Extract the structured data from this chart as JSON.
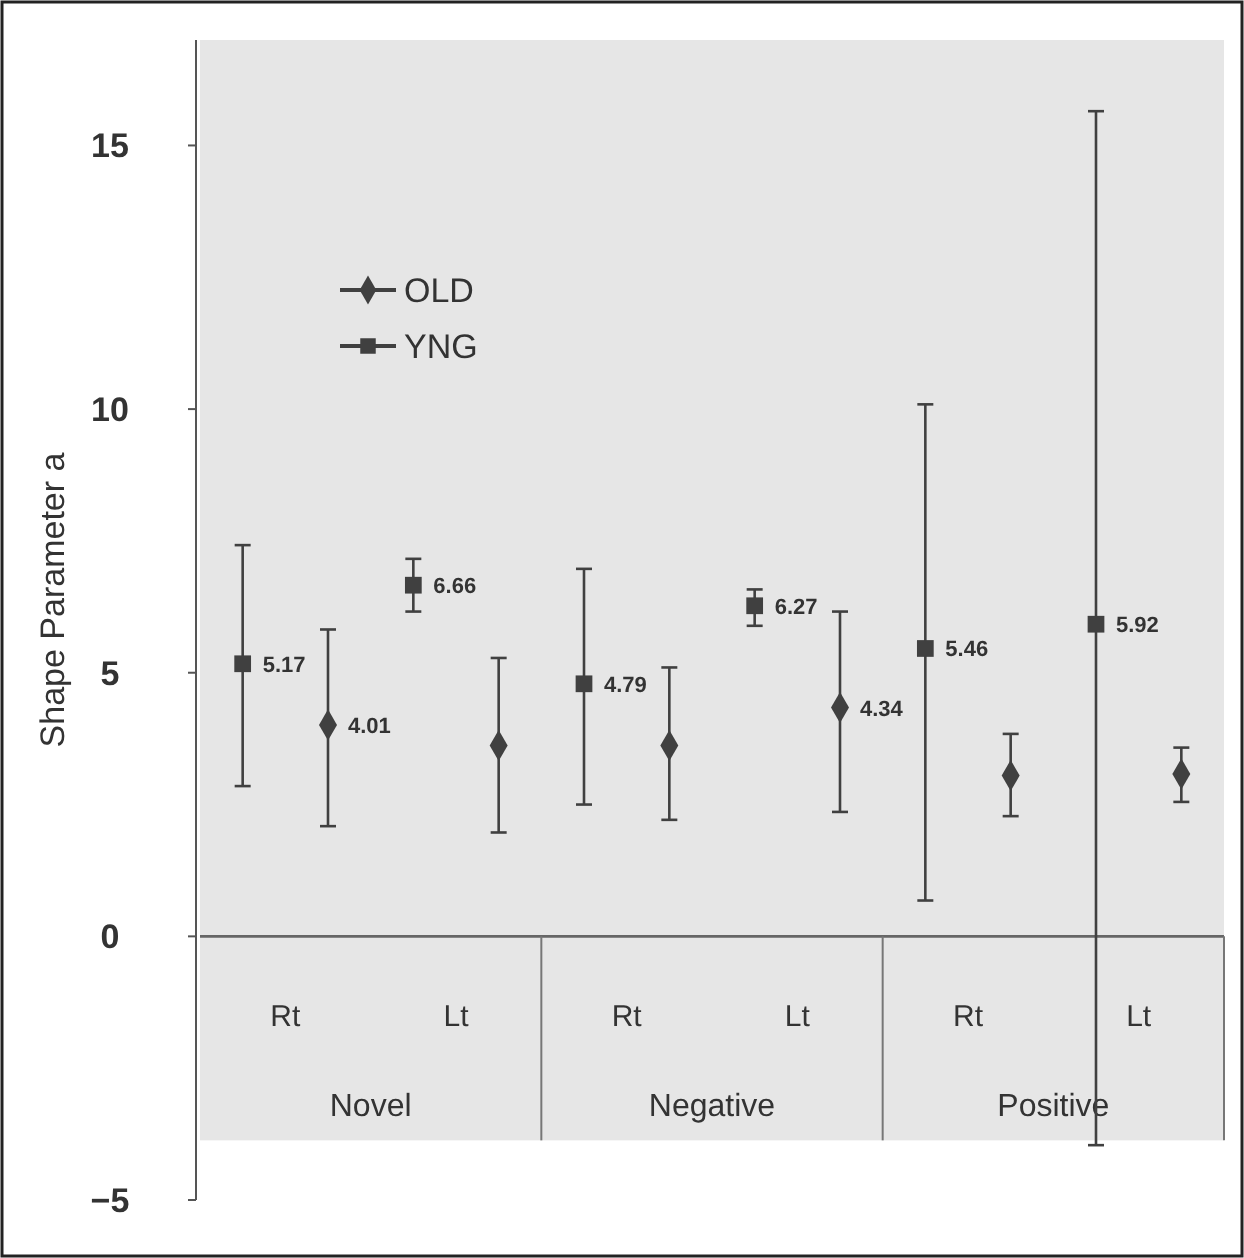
{
  "chart_data": {
    "type": "scatter",
    "ylabel": "Shape Parameter a",
    "categories": [
      "Rt",
      "Lt",
      "Rt",
      "Lt",
      "Rt",
      "Lt"
    ],
    "annotations": [
      "Novel",
      "Negative",
      "Positive"
    ],
    "ylim": [
      -5,
      17
    ],
    "yticks": [
      -5,
      0,
      5,
      10,
      15
    ],
    "legend": "top left",
    "series": [
      {
        "name": "OLD",
        "color": "#404040",
        "marker": "diamond",
        "values": [
          4.01,
          3.62,
          3.62,
          4.34,
          3.05,
          3.08
        ],
        "value_labels": [
          "4.01",
          null,
          null,
          "4.34",
          null,
          null
        ],
        "errors": [
          [
            2.09,
            5.82
          ],
          [
            1.97,
            5.28
          ],
          [
            2.21,
            5.1
          ],
          [
            2.36,
            6.16
          ],
          [
            2.28,
            3.84
          ],
          [
            2.55,
            3.58
          ]
        ]
      },
      {
        "name": "YNG",
        "color": "#404040",
        "marker": "square",
        "values": [
          5.17,
          6.66,
          4.79,
          6.27,
          5.46,
          5.92
        ],
        "value_labels": [
          "5.17",
          "6.66",
          "4.79",
          "6.27",
          "5.46",
          "5.92"
        ],
        "errors": [
          [
            2.85,
            7.42
          ],
          [
            6.16,
            7.16
          ],
          [
            2.5,
            6.97
          ],
          [
            5.89,
            6.58
          ],
          [
            0.68,
            10.09
          ],
          [
            -3.96,
            15.65
          ]
        ]
      }
    ]
  }
}
